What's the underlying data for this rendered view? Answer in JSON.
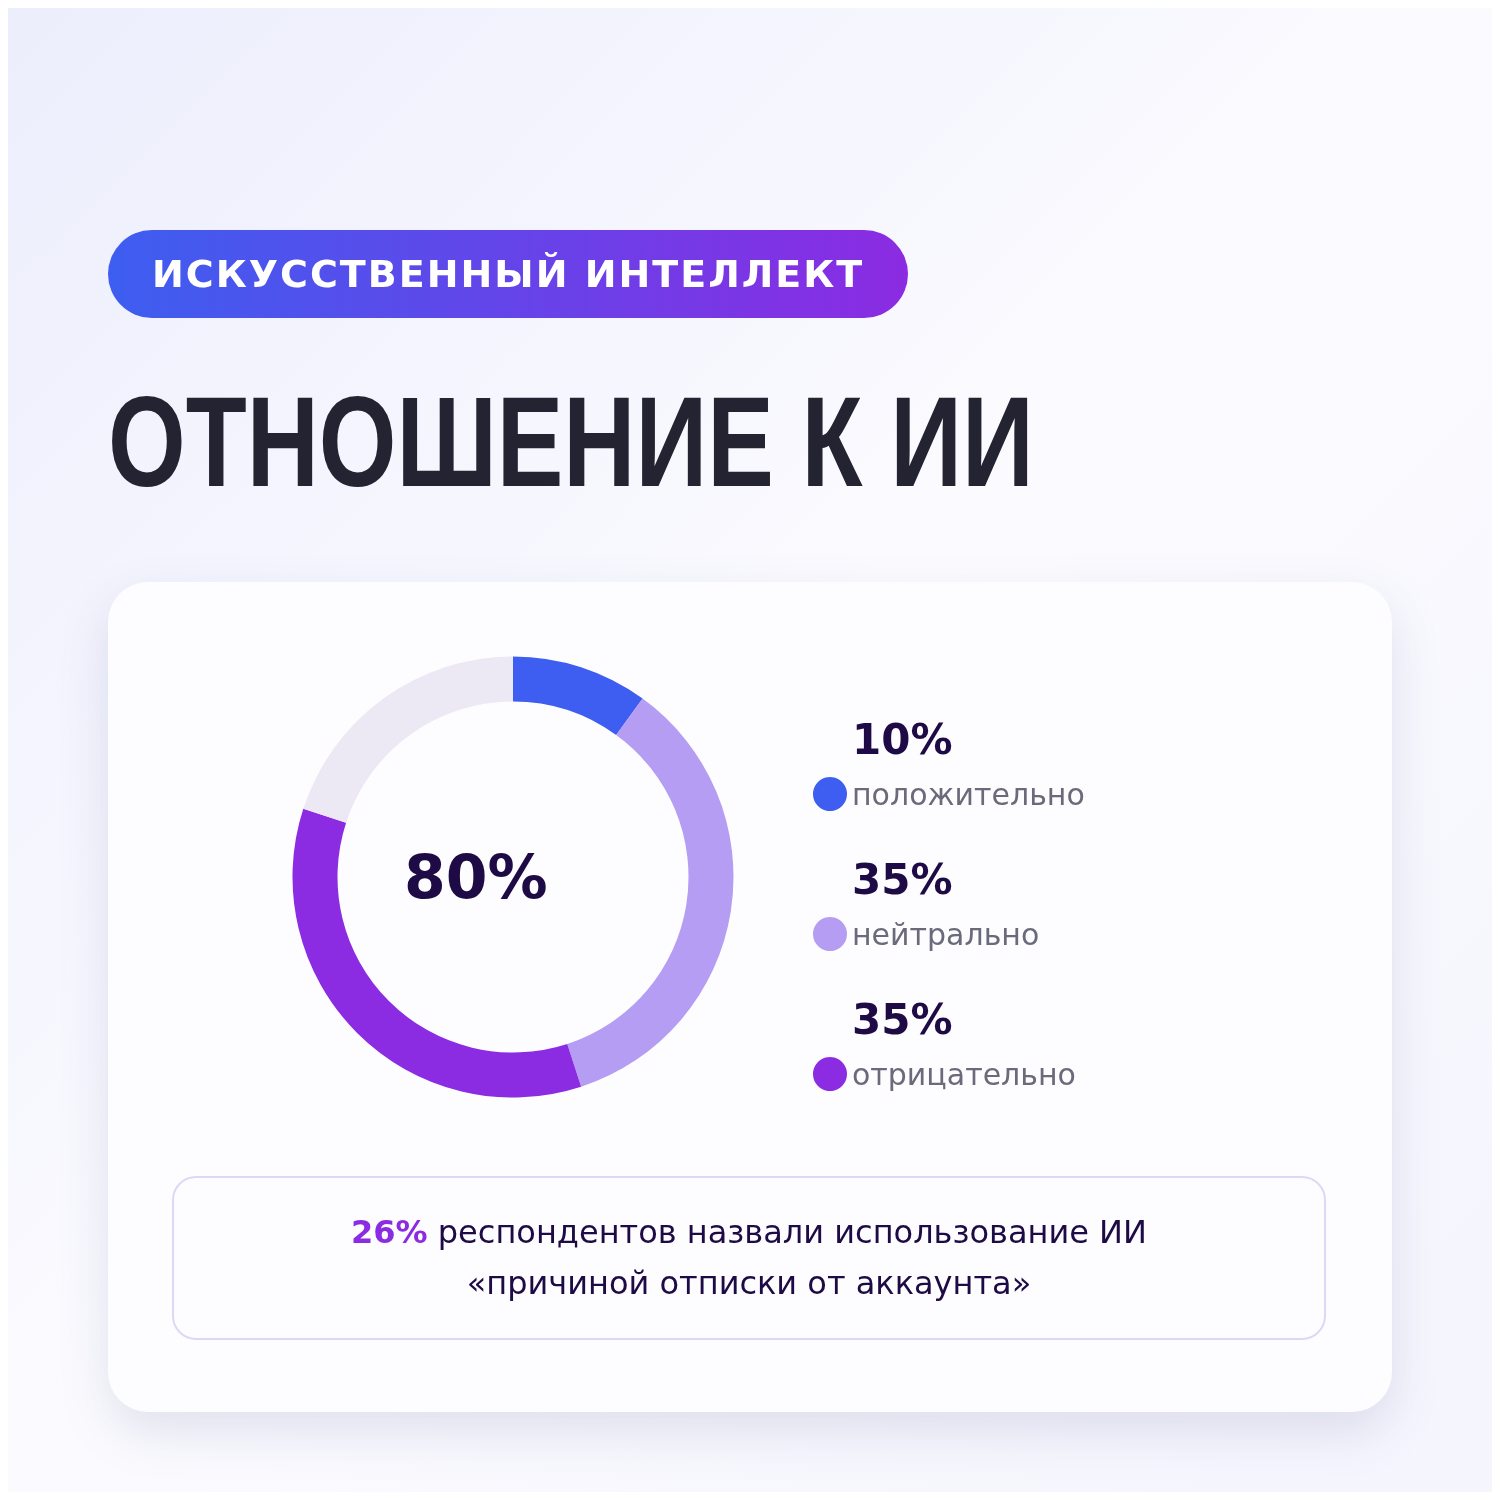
{
  "chart_data": {
    "type": "donut",
    "subtitle": "ИСКУССТВЕННЫЙ ИНТЕЛЛЕКТ",
    "title": "ОТНОШЕНИЕ К ИИ",
    "categories": [
      "положительно",
      "нейтрально",
      "отрицательно",
      null
    ],
    "values": [
      10,
      35,
      35,
      20
    ],
    "colors": [
      "#3d5ef0",
      "#b49df2",
      "#8b2be2",
      "#ece8f4"
    ],
    "value_labels": [
      "10%",
      "35%",
      "35%",
      null
    ],
    "legend": "right",
    "annotations": [
      "80%",
      "26% респондентов назвали использование ИИ «причиной отписки от аккаунта»"
    ]
  }
}
